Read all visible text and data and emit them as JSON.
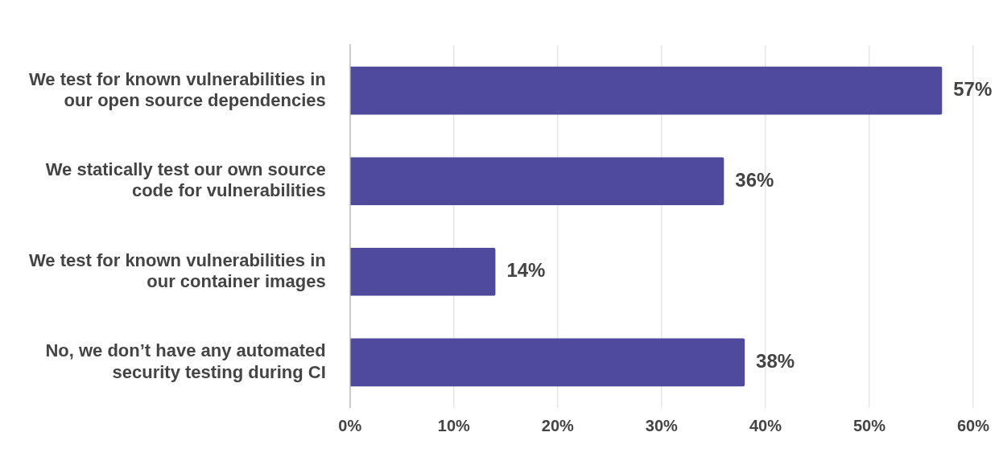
{
  "chart_data": {
    "type": "bar",
    "orientation": "horizontal",
    "categories": [
      "We test for known vulnerabilities in our open source dependencies",
      "We statically test our own source code for vulnerabilities",
      "We test for known vulnerabilities in our container images",
      "No, we don’t have any automated security testing during CI"
    ],
    "values": [
      57,
      36,
      14,
      38
    ],
    "value_labels": [
      "57%",
      "36%",
      "14%",
      "38%"
    ],
    "color": "#4f4a9c",
    "xlim": [
      0,
      60
    ],
    "xticks": [
      {
        "value": 0,
        "label": "0%"
      },
      {
        "value": 10,
        "label": "10%"
      },
      {
        "value": 20,
        "label": "20%"
      },
      {
        "value": 30,
        "label": "30%"
      },
      {
        "value": 40,
        "label": "40%"
      },
      {
        "value": 50,
        "label": "50%"
      },
      {
        "value": 60,
        "label": "60%"
      }
    ],
    "grid": "x",
    "legend": false
  }
}
